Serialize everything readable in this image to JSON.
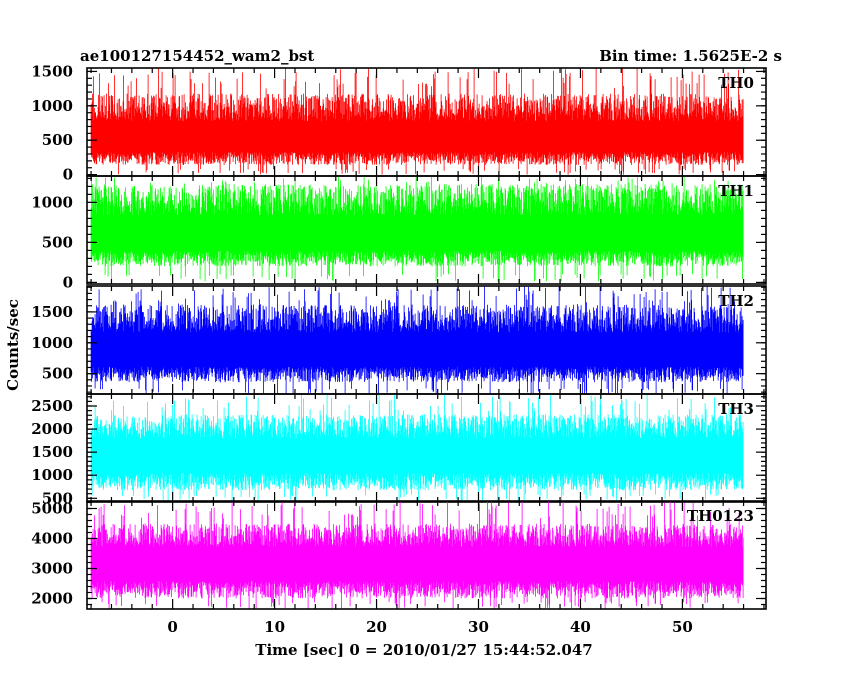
{
  "chart_data": {
    "type": "line",
    "title_left": "ae100127154452_wam2_bst",
    "title_right": "Bin time: 1.5625E-2 s",
    "xlabel": "Time [sec] 0 = 2010/01/27 15:44:52.047",
    "ylabel": "Counts/sec",
    "xlim": [
      -8.4,
      58.2
    ],
    "data_x_range": [
      -8.0,
      56.0
    ],
    "x_ticks": [
      0,
      10,
      20,
      30,
      40,
      50
    ],
    "x_minor_step": 2,
    "panels": [
      {
        "name": "TH0",
        "color": "#ff0000",
        "ylim": [
          -20,
          1550
        ],
        "y_ticks": [
          0,
          500,
          1000,
          1500
        ],
        "y_minor_step": 100,
        "baseline_mean": 560,
        "noise_low": 420,
        "noise_high": 620,
        "spike_max": 1550,
        "floor": 0
      },
      {
        "name": "TH1",
        "color": "#00ff00",
        "ylim": [
          -20,
          1330
        ],
        "y_ticks": [
          0,
          500,
          1000
        ],
        "y_minor_step": 100,
        "baseline_mean": 630,
        "noise_low": 430,
        "noise_high": 600,
        "spike_max": 1330,
        "floor": 10
      },
      {
        "name": "TH2",
        "color": "#0000ff",
        "ylim": [
          170,
          1920
        ],
        "y_ticks": [
          500,
          1000,
          1500
        ],
        "y_minor_step": 100,
        "baseline_mean": 920,
        "noise_low": 560,
        "noise_high": 700,
        "spike_max": 1920,
        "floor": 150
      },
      {
        "name": "TH3",
        "color": "#00ffff",
        "ylim": [
          420,
          2760
        ],
        "y_ticks": [
          500,
          1000,
          1500,
          2000,
          2500
        ],
        "y_minor_step": 100,
        "baseline_mean": 1520,
        "noise_low": 850,
        "noise_high": 800,
        "spike_max": 2760,
        "floor": 420
      },
      {
        "name": "TH0123",
        "color": "#ff00ff",
        "ylim": [
          1650,
          5250
        ],
        "y_ticks": [
          2000,
          3000,
          4000,
          5000
        ],
        "y_minor_step": 200,
        "baseline_mean": 3300,
        "noise_low": 1300,
        "noise_high": 1200,
        "spike_max": 5250,
        "floor": 1650
      }
    ],
    "grid": false,
    "legend": "none"
  }
}
